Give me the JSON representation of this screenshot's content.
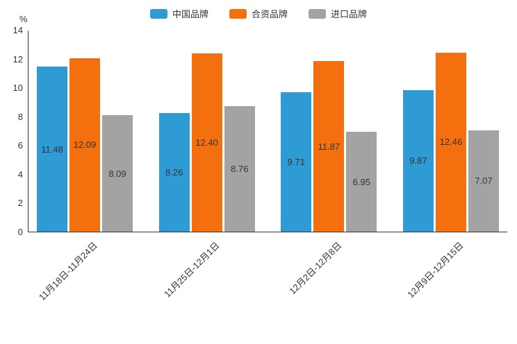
{
  "chart_data": {
    "type": "bar",
    "title": "",
    "unit_label": "%",
    "background_color": "#ffffff",
    "categories": [
      "11月18日-11月24日",
      "11月25日-12月1日",
      "12月2日-12月8日",
      "12月9日-12月15日"
    ],
    "series": [
      {
        "key": "china-brand",
        "name": "中国品牌",
        "color": "#2E9BD5",
        "values": [
          11.48,
          8.26,
          9.71,
          9.87
        ]
      },
      {
        "key": "joint-venture-brand",
        "name": "合资品牌",
        "color": "#F4700E",
        "values": [
          12.09,
          12.4,
          11.87,
          12.46
        ]
      },
      {
        "key": "import-brand",
        "name": "进口品牌",
        "color": "#A3A3A3",
        "values": [
          8.09,
          8.76,
          6.95,
          7.07
        ]
      }
    ],
    "ylim": [
      0,
      14
    ],
    "yticks": [
      0,
      2,
      4,
      6,
      8,
      10,
      12,
      14
    ],
    "grid": false,
    "legend_position": "top",
    "value_labels": "inside-center",
    "value_label_format": "2-decimals",
    "axis_color": "#333333",
    "label_color": "#333333"
  }
}
